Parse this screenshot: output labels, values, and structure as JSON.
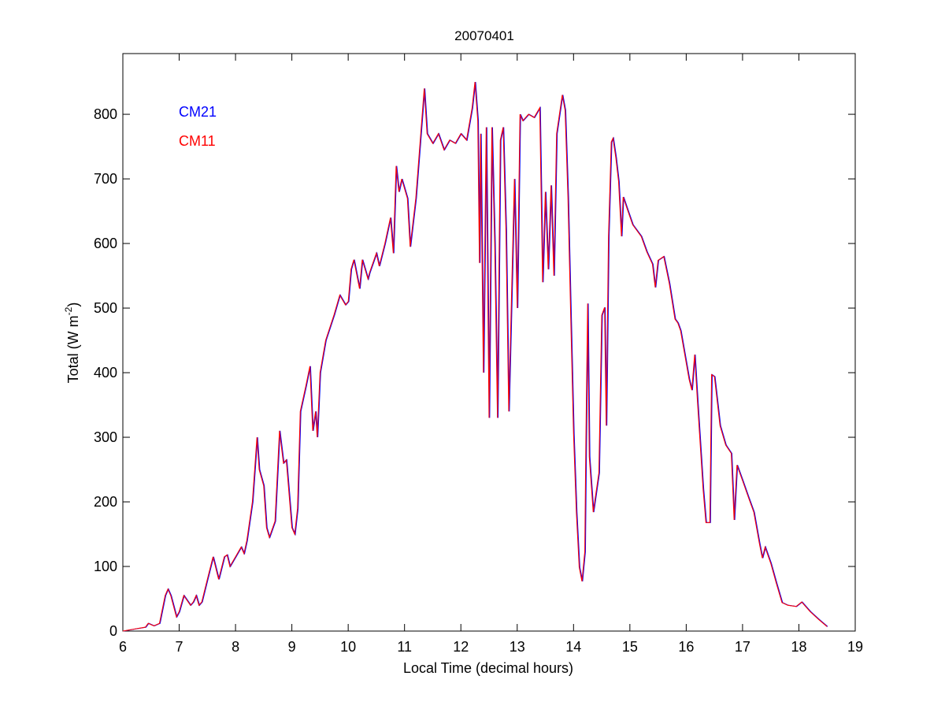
{
  "chart_data": {
    "type": "line",
    "title": "20070401",
    "xlabel": "Local Time (decimal hours)",
    "ylabel": {
      "main": "Total (W m",
      "sup": "-2",
      "end": ")"
    },
    "xlim": [
      6,
      19
    ],
    "ylim": [
      0,
      894
    ],
    "xticks": [
      6,
      7,
      8,
      9,
      10,
      11,
      12,
      13,
      14,
      15,
      16,
      17,
      18,
      19
    ],
    "yticks": [
      0,
      100,
      200,
      300,
      400,
      500,
      600,
      700,
      800
    ],
    "grid": false,
    "legend_placement": "top-left",
    "x": [
      6.0,
      6.2,
      6.4,
      6.45,
      6.55,
      6.65,
      6.75,
      6.8,
      6.85,
      6.95,
      7.0,
      7.08,
      7.2,
      7.25,
      7.3,
      7.35,
      7.4,
      7.5,
      7.6,
      7.7,
      7.8,
      7.85,
      7.9,
      8.0,
      8.1,
      8.15,
      8.2,
      8.3,
      8.38,
      8.42,
      8.5,
      8.55,
      8.6,
      8.7,
      8.78,
      8.85,
      8.9,
      9.0,
      9.05,
      9.1,
      9.15,
      9.25,
      9.32,
      9.37,
      9.42,
      9.45,
      9.5,
      9.6,
      9.75,
      9.85,
      9.95,
      10.0,
      10.05,
      10.1,
      10.2,
      10.25,
      10.35,
      10.38,
      10.5,
      10.55,
      10.65,
      10.75,
      10.8,
      10.85,
      10.9,
      10.95,
      11.05,
      11.1,
      11.2,
      11.35,
      11.4,
      11.5,
      11.6,
      11.7,
      11.8,
      11.9,
      12.0,
      12.1,
      12.2,
      12.25,
      12.3,
      12.33,
      12.35,
      12.4,
      12.45,
      12.5,
      12.55,
      12.6,
      12.65,
      12.7,
      12.75,
      12.8,
      12.85,
      12.95,
      13.0,
      13.05,
      13.1,
      13.2,
      13.3,
      13.4,
      13.45,
      13.5,
      13.55,
      13.6,
      13.65,
      13.7,
      13.8,
      13.85,
      13.9,
      13.95,
      14.0,
      14.05,
      14.1,
      14.15,
      14.2,
      14.22,
      14.25,
      14.28,
      14.35,
      14.45,
      14.5,
      14.55,
      14.58,
      14.62,
      14.67,
      14.7,
      14.75,
      14.8,
      14.85,
      14.88,
      14.95,
      15.05,
      15.2,
      15.3,
      15.4,
      15.45,
      15.5,
      15.6,
      15.7,
      15.8,
      15.85,
      15.9,
      16.0,
      16.05,
      16.1,
      16.15,
      16.2,
      16.3,
      16.35,
      16.42,
      16.45,
      16.5,
      16.6,
      16.7,
      16.8,
      16.85,
      16.9,
      17.0,
      17.1,
      17.2,
      17.3,
      17.35,
      17.4,
      17.5,
      17.6,
      17.7,
      17.8,
      17.95,
      18.05,
      18.2,
      18.35,
      18.5
    ],
    "series": [
      {
        "name": "CM21",
        "color": "#0000ff",
        "values": [
          0,
          3,
          6,
          12,
          8,
          12,
          55,
          65,
          55,
          22,
          30,
          55,
          40,
          45,
          55,
          40,
          45,
          80,
          115,
          80,
          115,
          118,
          100,
          115,
          130,
          120,
          140,
          200,
          300,
          250,
          225,
          160,
          145,
          170,
          310,
          260,
          265,
          160,
          150,
          190,
          340,
          380,
          410,
          310,
          340,
          300,
          400,
          450,
          490,
          520,
          505,
          510,
          560,
          575,
          530,
          575,
          545,
          555,
          585,
          565,
          600,
          640,
          585,
          720,
          680,
          700,
          670,
          595,
          670,
          840,
          770,
          755,
          770,
          745,
          760,
          755,
          770,
          760,
          810,
          850,
          790,
          570,
          770,
          400,
          780,
          330,
          780,
          600,
          330,
          760,
          780,
          620,
          340,
          700,
          500,
          800,
          790,
          800,
          795,
          810,
          540,
          680,
          560,
          690,
          550,
          770,
          830,
          806,
          672,
          489,
          306,
          184,
          99,
          77,
          123,
          294,
          507,
          270,
          184,
          245,
          489,
          501,
          318,
          611,
          757,
          763,
          733,
          696,
          611,
          672,
          654,
          629,
          611,
          587,
          568,
          532,
          574,
          580,
          538,
          483,
          477,
          465,
          415,
          390,
          373,
          428,
          355,
          220,
          168,
          168,
          397,
          394,
          318,
          288,
          275,
          172,
          257,
          233,
          208,
          184,
          135,
          113,
          130,
          105,
          74,
          44,
          40,
          38,
          45,
          30,
          18,
          7
        ]
      },
      {
        "name": "CM11",
        "color": "#ff0000",
        "values": [
          0,
          3,
          6,
          12,
          8,
          12,
          55,
          65,
          55,
          22,
          30,
          55,
          40,
          45,
          55,
          40,
          45,
          80,
          115,
          80,
          115,
          118,
          100,
          115,
          130,
          120,
          140,
          200,
          300,
          250,
          225,
          160,
          145,
          170,
          310,
          260,
          265,
          160,
          150,
          190,
          340,
          380,
          410,
          310,
          340,
          300,
          400,
          450,
          490,
          520,
          505,
          510,
          560,
          575,
          530,
          575,
          545,
          555,
          585,
          565,
          600,
          640,
          585,
          720,
          680,
          700,
          670,
          595,
          670,
          840,
          770,
          755,
          770,
          745,
          760,
          755,
          770,
          760,
          810,
          850,
          790,
          570,
          770,
          400,
          780,
          330,
          780,
          600,
          330,
          760,
          780,
          620,
          340,
          700,
          500,
          800,
          790,
          800,
          795,
          810,
          540,
          680,
          560,
          690,
          550,
          770,
          830,
          806,
          672,
          489,
          306,
          184,
          99,
          77,
          123,
          294,
          507,
          270,
          184,
          245,
          489,
          501,
          318,
          611,
          757,
          763,
          733,
          696,
          611,
          672,
          654,
          629,
          611,
          587,
          568,
          532,
          574,
          580,
          538,
          483,
          477,
          465,
          415,
          390,
          373,
          428,
          355,
          220,
          168,
          168,
          397,
          394,
          318,
          288,
          275,
          172,
          257,
          233,
          208,
          184,
          135,
          113,
          130,
          105,
          74,
          44,
          40,
          38,
          45,
          30,
          18,
          7
        ]
      }
    ]
  }
}
